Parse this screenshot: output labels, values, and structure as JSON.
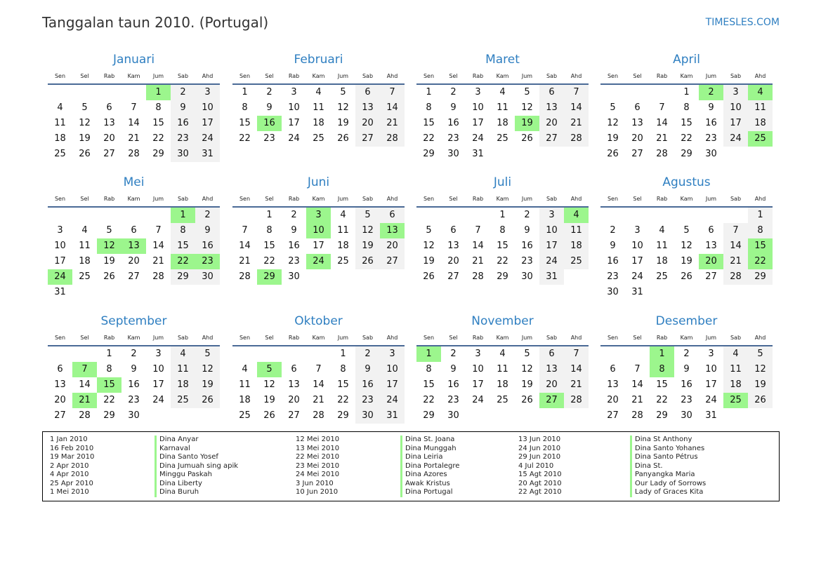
{
  "title": "Tanggalan taun 2010. (Portugal)",
  "site": "TIMESLES.COM",
  "colors": {
    "accent": "#2f7fc1",
    "holiday": "#9cf68d",
    "weekend": "#f2f2f2",
    "rule": "#4a6a96"
  },
  "weekdays": [
    "Sen",
    "Sel",
    "Rab",
    "Kam",
    "Jum",
    "Sab",
    "Ahd"
  ],
  "months": [
    {
      "name": "Januari",
      "holidays": [
        1
      ],
      "weeks": [
        [
          null,
          null,
          null,
          null,
          1,
          2,
          3
        ],
        [
          4,
          5,
          6,
          7,
          8,
          9,
          10
        ],
        [
          11,
          12,
          13,
          14,
          15,
          16,
          17
        ],
        [
          18,
          19,
          20,
          21,
          22,
          23,
          24
        ],
        [
          25,
          26,
          27,
          28,
          29,
          30,
          31
        ]
      ]
    },
    {
      "name": "Februari",
      "holidays": [
        16
      ],
      "weeks": [
        [
          1,
          2,
          3,
          4,
          5,
          6,
          7
        ],
        [
          8,
          9,
          10,
          11,
          12,
          13,
          14
        ],
        [
          15,
          16,
          17,
          18,
          19,
          20,
          21
        ],
        [
          22,
          23,
          24,
          25,
          26,
          27,
          28
        ]
      ]
    },
    {
      "name": "Maret",
      "holidays": [
        19
      ],
      "weeks": [
        [
          1,
          2,
          3,
          4,
          5,
          6,
          7
        ],
        [
          8,
          9,
          10,
          11,
          12,
          13,
          14
        ],
        [
          15,
          16,
          17,
          18,
          19,
          20,
          21
        ],
        [
          22,
          23,
          24,
          25,
          26,
          27,
          28
        ],
        [
          29,
          30,
          31
        ]
      ]
    },
    {
      "name": "April",
      "holidays": [
        2,
        4,
        25
      ],
      "weeks": [
        [
          null,
          null,
          null,
          1,
          2,
          3,
          4
        ],
        [
          5,
          6,
          7,
          8,
          9,
          10,
          11
        ],
        [
          12,
          13,
          14,
          15,
          16,
          17,
          18
        ],
        [
          19,
          20,
          21,
          22,
          23,
          24,
          25
        ],
        [
          26,
          27,
          28,
          29,
          30
        ]
      ]
    },
    {
      "name": "Mei",
      "holidays": [
        1,
        12,
        13,
        22,
        23,
        24
      ],
      "weeks": [
        [
          null,
          null,
          null,
          null,
          null,
          1,
          2
        ],
        [
          3,
          4,
          5,
          6,
          7,
          8,
          9
        ],
        [
          10,
          11,
          12,
          13,
          14,
          15,
          16
        ],
        [
          17,
          18,
          19,
          20,
          21,
          22,
          23
        ],
        [
          24,
          25,
          26,
          27,
          28,
          29,
          30
        ],
        [
          31
        ]
      ]
    },
    {
      "name": "Juni",
      "holidays": [
        3,
        10,
        13,
        24,
        29
      ],
      "weeks": [
        [
          null,
          1,
          2,
          3,
          4,
          5,
          6
        ],
        [
          7,
          8,
          9,
          10,
          11,
          12,
          13
        ],
        [
          14,
          15,
          16,
          17,
          18,
          19,
          20
        ],
        [
          21,
          22,
          23,
          24,
          25,
          26,
          27
        ],
        [
          28,
          29,
          30
        ]
      ]
    },
    {
      "name": "Juli",
      "holidays": [
        4
      ],
      "weeks": [
        [
          null,
          null,
          null,
          1,
          2,
          3,
          4
        ],
        [
          5,
          6,
          7,
          8,
          9,
          10,
          11
        ],
        [
          12,
          13,
          14,
          15,
          16,
          17,
          18
        ],
        [
          19,
          20,
          21,
          22,
          23,
          24,
          25
        ],
        [
          26,
          27,
          28,
          29,
          30,
          31
        ]
      ]
    },
    {
      "name": "Agustus",
      "holidays": [
        15,
        20,
        22
      ],
      "weeks": [
        [
          null,
          null,
          null,
          null,
          null,
          null,
          1
        ],
        [
          2,
          3,
          4,
          5,
          6,
          7,
          8
        ],
        [
          9,
          10,
          11,
          12,
          13,
          14,
          15
        ],
        [
          16,
          17,
          18,
          19,
          20,
          21,
          22
        ],
        [
          23,
          24,
          25,
          26,
          27,
          28,
          29
        ],
        [
          30,
          31
        ]
      ]
    },
    {
      "name": "September",
      "holidays": [
        7,
        15,
        21
      ],
      "weeks": [
        [
          null,
          null,
          1,
          2,
          3,
          4,
          5
        ],
        [
          6,
          7,
          8,
          9,
          10,
          11,
          12
        ],
        [
          13,
          14,
          15,
          16,
          17,
          18,
          19
        ],
        [
          20,
          21,
          22,
          23,
          24,
          25,
          26
        ],
        [
          27,
          28,
          29,
          30
        ]
      ]
    },
    {
      "name": "Oktober",
      "holidays": [
        5
      ],
      "weeks": [
        [
          null,
          null,
          null,
          null,
          1,
          2,
          3
        ],
        [
          4,
          5,
          6,
          7,
          8,
          9,
          10
        ],
        [
          11,
          12,
          13,
          14,
          15,
          16,
          17
        ],
        [
          18,
          19,
          20,
          21,
          22,
          23,
          24
        ],
        [
          25,
          26,
          27,
          28,
          29,
          30,
          31
        ]
      ]
    },
    {
      "name": "November",
      "holidays": [
        1,
        27
      ],
      "weeks": [
        [
          1,
          2,
          3,
          4,
          5,
          6,
          7
        ],
        [
          8,
          9,
          10,
          11,
          12,
          13,
          14
        ],
        [
          15,
          16,
          17,
          18,
          19,
          20,
          21
        ],
        [
          22,
          23,
          24,
          25,
          26,
          27,
          28
        ],
        [
          29,
          30
        ]
      ]
    },
    {
      "name": "Desember",
      "holidays": [
        1,
        8,
        25
      ],
      "weeks": [
        [
          null,
          null,
          1,
          2,
          3,
          4,
          5
        ],
        [
          6,
          7,
          8,
          9,
          10,
          11,
          12
        ],
        [
          13,
          14,
          15,
          16,
          17,
          18,
          19
        ],
        [
          20,
          21,
          22,
          23,
          24,
          25,
          26
        ],
        [
          27,
          28,
          29,
          30,
          31
        ]
      ]
    }
  ],
  "holiday_list": [
    {
      "date": "1 Jan 2010",
      "name": "Dina Anyar"
    },
    {
      "date": "16 Feb 2010",
      "name": "Karnaval"
    },
    {
      "date": "19 Mar 2010",
      "name": "Dina Santo Yosef"
    },
    {
      "date": "2 Apr 2010",
      "name": "Dina Jumuah sing apik"
    },
    {
      "date": "4 Apr 2010",
      "name": "Minggu Paskah"
    },
    {
      "date": "25 Apr 2010",
      "name": "Dina Liberty"
    },
    {
      "date": "1 Mei 2010",
      "name": "Dina Buruh"
    },
    {
      "date": "12 Mei 2010",
      "name": "Dina St. Joana"
    },
    {
      "date": "13 Mei 2010",
      "name": "Dina Munggah"
    },
    {
      "date": "22 Mei 2010",
      "name": "Dina Leiria"
    },
    {
      "date": "23 Mei 2010",
      "name": "Dina Portalegre"
    },
    {
      "date": "24 Mei 2010",
      "name": "Dina Azores"
    },
    {
      "date": "3 Jun 2010",
      "name": "Awak Kristus"
    },
    {
      "date": "10 Jun 2010",
      "name": "Dina Portugal"
    },
    {
      "date": "13 Jun 2010",
      "name": "Dina St Anthony"
    },
    {
      "date": "24 Jun 2010",
      "name": "Dina Santo Yohanes"
    },
    {
      "date": "29 Jun 2010",
      "name": "Dina Santo Pétrus"
    },
    {
      "date": "4 Jul 2010",
      "name": "Dina St."
    },
    {
      "date": "15 Agt 2010",
      "name": "Panyangka Maria"
    },
    {
      "date": "20 Agt 2010",
      "name": "Our Lady of Sorrows"
    },
    {
      "date": "22 Agt 2010",
      "name": "Lady of Graces Kita"
    }
  ]
}
